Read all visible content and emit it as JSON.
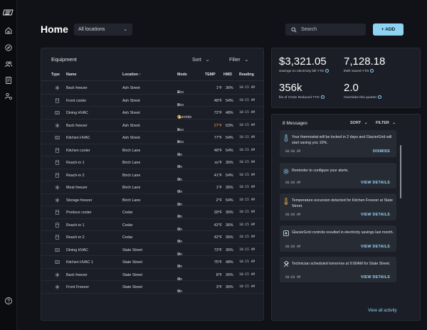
{
  "nav": {
    "logo": "logo-icon",
    "items": [
      "home-icon",
      "compass-icon",
      "users-icon",
      "document-icon",
      "settings-users-icon"
    ],
    "help": "help-icon"
  },
  "header": {
    "title": "Home",
    "location_select": "All locations",
    "search_placeholder": "Search",
    "add_label": "+ ADD"
  },
  "equipment": {
    "title": "Equipment",
    "sort_label": "Sort",
    "filter_label": "Filter",
    "columns": [
      "Type",
      "Name",
      "Location ↑",
      "Mode",
      "TEMP",
      "HMD",
      "Reading"
    ],
    "rows": [
      {
        "type": "freezer-icon",
        "name": "Back freezer",
        "location": "Ash Street",
        "mode_icon": "eco-icon",
        "mode": "Eco",
        "temp": "1°F",
        "hmd": "36%",
        "reading": "10:15 AM",
        "warn": false
      },
      {
        "type": "cooler-icon",
        "name": "Front cooler",
        "location": "Ash Street",
        "mode_icon": "eco-icon",
        "mode": "Eco",
        "temp": "48°F",
        "hmd": "54%",
        "reading": "10:15 AM",
        "warn": false
      },
      {
        "type": "hvac-icon",
        "name": "Dining HVAC",
        "location": "Ash Street",
        "mode_icon": "hand-icon",
        "mode": "Override",
        "temp": "72°F",
        "hmd": "48%",
        "reading": "10:15 AM",
        "warn": false
      },
      {
        "type": "freezer-icon",
        "name": "Back freezer",
        "location": "Ash Street",
        "mode_icon": "eco-icon",
        "mode": "Eco",
        "temp": "27°F",
        "hmd": "63%",
        "reading": "10:15 AM",
        "warn": true
      },
      {
        "type": "hvac-icon",
        "name": "Kitchen HVAC",
        "location": "Ash Street",
        "mode_icon": "eco-icon",
        "mode": "Eco",
        "temp": "77°F",
        "hmd": "54%",
        "reading": "10:15 AM",
        "warn": false
      },
      {
        "type": "cooler-icon",
        "name": "Kitchen cooler",
        "location": "Birch Lane",
        "mode_icon": "snowflake-icon",
        "mode": "On",
        "temp": "48°F",
        "hmd": "54%",
        "reading": "10:15 AM",
        "warn": false
      },
      {
        "type": "cooler-icon",
        "name": "Reach-in 1",
        "location": "Birch Lane",
        "mode_icon": "snowflake-icon",
        "mode": "On",
        "temp": "xx°F",
        "hmd": "36%",
        "reading": "10:15 AM",
        "warn": false
      },
      {
        "type": "cooler-icon",
        "name": "Reach-in 2",
        "location": "Birch Lane",
        "mode_icon": "snowflake-icon",
        "mode": "On",
        "temp": "41°F",
        "hmd": "54%",
        "reading": "10:15 AM",
        "warn": false
      },
      {
        "type": "freezer-icon",
        "name": "Meat freezer",
        "location": "Birch Lane",
        "mode_icon": "snowflake-icon",
        "mode": "On",
        "temp": "1°F",
        "hmd": "36%",
        "reading": "10:15 AM",
        "warn": false
      },
      {
        "type": "freezer-icon",
        "name": "Storage freezer",
        "location": "Birch Lane",
        "mode_icon": "snowflake-icon",
        "mode": "On",
        "temp": "2°F",
        "hmd": "54%",
        "reading": "10:15 AM",
        "warn": false
      },
      {
        "type": "cooler-icon",
        "name": "Produce cooler",
        "location": "Cedar",
        "mode_icon": "snowflake-icon",
        "mode": "On",
        "temp": "39°F",
        "hmd": "36%",
        "reading": "10:15 AM",
        "warn": false
      },
      {
        "type": "cooler-icon",
        "name": "Reach-in 1",
        "location": "Cedar",
        "mode_icon": "snowflake-icon",
        "mode": "On",
        "temp": "42°F",
        "hmd": "36%",
        "reading": "10:15 AM",
        "warn": false
      },
      {
        "type": "cooler-icon",
        "name": "Reach-in 2",
        "location": "Cedar",
        "mode_icon": "snowflake-icon",
        "mode": "On",
        "temp": "42°F",
        "hmd": "36%",
        "reading": "10:15 AM",
        "warn": false
      },
      {
        "type": "hvac-icon",
        "name": "Dining HVAC",
        "location": "State Street",
        "mode_icon": "snowflake-icon",
        "mode": "On",
        "temp": "73°F",
        "hmd": "36%",
        "reading": "10:15 AM",
        "warn": false
      },
      {
        "type": "hvac-icon",
        "name": "Kitchen HVAC 1",
        "location": "State Street",
        "mode_icon": "snowflake-icon",
        "mode": "On",
        "temp": "75°F",
        "hmd": "48%",
        "reading": "10:15 AM",
        "warn": false
      },
      {
        "type": "freezer-icon",
        "name": "Back freezer",
        "location": "State Street",
        "mode_icon": "snowflake-icon",
        "mode": "On",
        "temp": "8°F",
        "hmd": "36%",
        "reading": "10:15 AM",
        "warn": false
      },
      {
        "type": "freezer-icon",
        "name": "Front Freezer",
        "location": "State Street",
        "mode_icon": "snowflake-icon",
        "mode": "On",
        "temp": "3°F",
        "hmd": "36%",
        "reading": "10:15 AM",
        "warn": false
      }
    ]
  },
  "stats": [
    {
      "value": "$3,321.05",
      "label": "Savings on electricity bill YTD"
    },
    {
      "value": "7,128.18",
      "label": "kWh Saved YTD"
    },
    {
      "value": "356k",
      "label": "lbs of CO2e Reduced YTD"
    },
    {
      "value": "2.0",
      "label": "Overrides this quarter"
    }
  ],
  "messages": {
    "title": "8 Messages",
    "sort_label": "SORT",
    "filter_label": "FILTER",
    "view_all": "View all activity",
    "items": [
      {
        "icon": "thermometer-icon",
        "text": "Your thermostat will be locked in 2 days and GlacierGrid will start saving you 10%.",
        "time": "00:00 AM",
        "action": "DISMISS"
      },
      {
        "icon": "gear-icon",
        "text": "Reminder to configure your alerts.",
        "time": "00:00 AM",
        "action": "VIEW DETAILS"
      },
      {
        "icon": "thermometer-alert-icon",
        "text": "Temperature excursion detected for Kitchen Freezer at State Street.",
        "time": "00:00 AM",
        "action": "VIEW DETAILS"
      },
      {
        "icon": "glaciergrid-icon",
        "text": "GlacierGrid controls resulted in electricity savings last month.",
        "time": "00:00 AM",
        "action": "VIEW DETAILS"
      },
      {
        "icon": "wrench-icon",
        "text": "Technician scheduled tomorrow at 9:00AM for State Street.",
        "time": "00:00 AM",
        "action": "VIEW DETAILS"
      }
    ]
  },
  "colors": {
    "accent": "#8fd3f2",
    "warning": "#e0a54a",
    "background": "#101217",
    "panel": "#1b1e26"
  }
}
